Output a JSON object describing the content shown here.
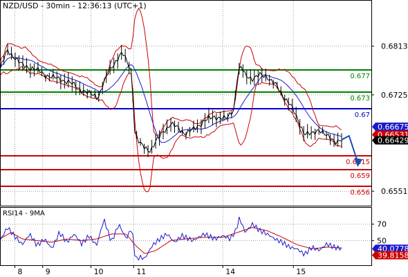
{
  "chart_data": [
    {
      "type": "line",
      "title": "NZD/USD - 30min - 12:36:13 (UTC+1)",
      "x_ticks": [
        {
          "label": "8",
          "x": 0.04
        },
        {
          "label": "9",
          "x": 0.115
        },
        {
          "label": "10",
          "x": 0.245
        },
        {
          "label": "11",
          "x": 0.36
        },
        {
          "label": "14",
          "x": 0.6
        },
        {
          "label": "15",
          "x": 0.79
        }
      ],
      "ylim": [
        0.6525,
        0.6895
      ],
      "y_ticks": [
        0.6813,
        0.6725,
        0.6551
      ],
      "grid": true,
      "series": [],
      "price_path": [
        [
          0.0,
          0.6772
        ],
        [
          0.02,
          0.6805
        ],
        [
          0.035,
          0.6796
        ],
        [
          0.06,
          0.6778
        ],
        [
          0.09,
          0.6773
        ],
        [
          0.12,
          0.6762
        ],
        [
          0.15,
          0.6755
        ],
        [
          0.18,
          0.675
        ],
        [
          0.21,
          0.6738
        ],
        [
          0.24,
          0.6727
        ],
        [
          0.265,
          0.6722
        ],
        [
          0.28,
          0.6748
        ],
        [
          0.3,
          0.6775
        ],
        [
          0.32,
          0.6794
        ],
        [
          0.33,
          0.68
        ],
        [
          0.34,
          0.6787
        ],
        [
          0.355,
          0.6768
        ],
        [
          0.362,
          0.666
        ],
        [
          0.375,
          0.6637
        ],
        [
          0.39,
          0.663
        ],
        [
          0.405,
          0.6625
        ],
        [
          0.42,
          0.664
        ],
        [
          0.44,
          0.666
        ],
        [
          0.46,
          0.6672
        ],
        [
          0.48,
          0.6665
        ],
        [
          0.5,
          0.6655
        ],
        [
          0.52,
          0.6662
        ],
        [
          0.55,
          0.6678
        ],
        [
          0.58,
          0.6686
        ],
        [
          0.61,
          0.6681
        ],
        [
          0.63,
          0.67
        ],
        [
          0.64,
          0.6765
        ],
        [
          0.65,
          0.6775
        ],
        [
          0.66,
          0.676
        ],
        [
          0.68,
          0.6755
        ],
        [
          0.7,
          0.676
        ],
        [
          0.72,
          0.6758
        ],
        [
          0.74,
          0.6745
        ],
        [
          0.76,
          0.6725
        ],
        [
          0.78,
          0.671
        ],
        [
          0.8,
          0.6682
        ],
        [
          0.82,
          0.6656
        ],
        [
          0.84,
          0.6653
        ],
        [
          0.86,
          0.6664
        ],
        [
          0.88,
          0.665
        ],
        [
          0.9,
          0.6642
        ],
        [
          0.92,
          0.6644
        ]
      ],
      "forecast_path": [
        [
          0.92,
          0.6644
        ],
        [
          0.94,
          0.6651
        ],
        [
          0.965,
          0.66
        ]
      ],
      "levels": [
        {
          "value": 0.677,
          "label": "0.677",
          "color": "#008000"
        },
        {
          "value": 0.673,
          "label": "0.673",
          "color": "#008000"
        },
        {
          "value": 0.67,
          "label": "0.67",
          "color": "#0000cc"
        },
        {
          "value": 0.6615,
          "label": "0.6615",
          "color": "#cc0000"
        },
        {
          "value": 0.659,
          "label": "0.659",
          "color": "#cc0000"
        },
        {
          "value": 0.656,
          "label": "0.656",
          "color": "#cc0000"
        }
      ],
      "price_tags": [
        {
          "value": 0.66675,
          "label": "0.66675",
          "bg": "#1a1acc",
          "fg": "#ffffff"
        },
        {
          "value": 0.66531,
          "label": "0.66531",
          "bg": "#cc0000",
          "fg": "#ffffff"
        },
        {
          "value": 0.66429,
          "label": "0.66429",
          "bg": "#000000",
          "fg": "#ffffff"
        }
      ],
      "colors": {
        "price": "#000000",
        "ma": "#1a1acc",
        "band": "#cc0000",
        "forecast_arrow": "#1a4fb3"
      }
    },
    {
      "type": "line",
      "title": "RSI14 - 9MA",
      "ylim": [
        20,
        90
      ],
      "y_ticks": [
        70,
        50
      ],
      "series": [],
      "rsi_path": [
        [
          0.0,
          50
        ],
        [
          0.02,
          66
        ],
        [
          0.04,
          55
        ],
        [
          0.06,
          45
        ],
        [
          0.08,
          58
        ],
        [
          0.1,
          44
        ],
        [
          0.12,
          52
        ],
        [
          0.14,
          40
        ],
        [
          0.16,
          60
        ],
        [
          0.18,
          48
        ],
        [
          0.2,
          58
        ],
        [
          0.22,
          46
        ],
        [
          0.24,
          56
        ],
        [
          0.26,
          44
        ],
        [
          0.28,
          76
        ],
        [
          0.3,
          48
        ],
        [
          0.32,
          70
        ],
        [
          0.34,
          52
        ],
        [
          0.355,
          66
        ],
        [
          0.365,
          26
        ],
        [
          0.375,
          30
        ],
        [
          0.39,
          28
        ],
        [
          0.41,
          44
        ],
        [
          0.43,
          52
        ],
        [
          0.45,
          58
        ],
        [
          0.47,
          48
        ],
        [
          0.49,
          56
        ],
        [
          0.52,
          50
        ],
        [
          0.55,
          58
        ],
        [
          0.58,
          52
        ],
        [
          0.6,
          56
        ],
        [
          0.62,
          52
        ],
        [
          0.635,
          62
        ],
        [
          0.645,
          78
        ],
        [
          0.66,
          60
        ],
        [
          0.68,
          70
        ],
        [
          0.7,
          62
        ],
        [
          0.72,
          58
        ],
        [
          0.74,
          52
        ],
        [
          0.76,
          48
        ],
        [
          0.78,
          42
        ],
        [
          0.8,
          40
        ],
        [
          0.82,
          33
        ],
        [
          0.84,
          42
        ],
        [
          0.86,
          38
        ],
        [
          0.88,
          46
        ],
        [
          0.9,
          42
        ],
        [
          0.92,
          40
        ]
      ],
      "rsi_ma_path": [
        [
          0.0,
          52
        ],
        [
          0.03,
          60
        ],
        [
          0.06,
          52
        ],
        [
          0.1,
          50
        ],
        [
          0.14,
          48
        ],
        [
          0.18,
          52
        ],
        [
          0.22,
          50
        ],
        [
          0.26,
          52
        ],
        [
          0.3,
          58
        ],
        [
          0.34,
          58
        ],
        [
          0.365,
          44
        ],
        [
          0.39,
          34
        ],
        [
          0.42,
          38
        ],
        [
          0.46,
          50
        ],
        [
          0.5,
          52
        ],
        [
          0.55,
          54
        ],
        [
          0.6,
          54
        ],
        [
          0.64,
          60
        ],
        [
          0.68,
          66
        ],
        [
          0.72,
          62
        ],
        [
          0.76,
          54
        ],
        [
          0.8,
          45
        ],
        [
          0.84,
          40
        ],
        [
          0.88,
          42
        ],
        [
          0.92,
          41
        ]
      ],
      "value_tags": [
        {
          "value": 40.0778,
          "label": "40.0778",
          "bg": "#1a1acc",
          "fg": "#ffffff"
        },
        {
          "value": 39.8158,
          "label": "39.8158",
          "bg": "#cc0000",
          "fg": "#ffffff"
        }
      ],
      "colors": {
        "rsi": "#1a1acc",
        "rsi_ma": "#cc0000"
      }
    }
  ]
}
